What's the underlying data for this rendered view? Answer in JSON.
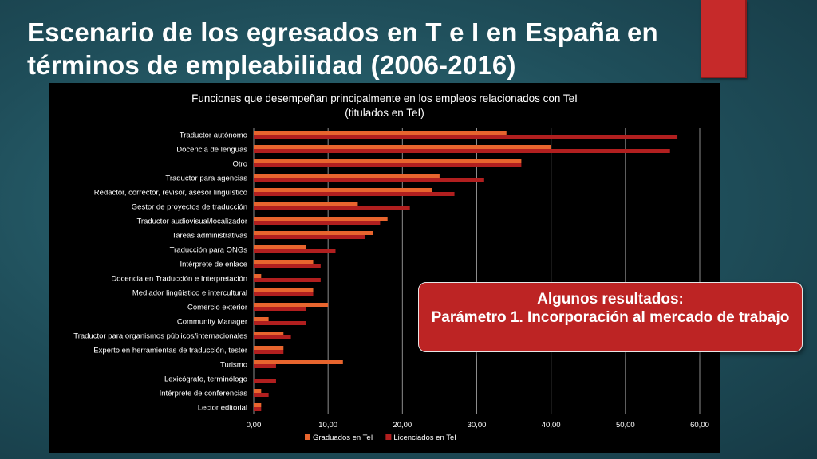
{
  "slide": {
    "title": "Escenario de los egresados en T e I  en España en términos de empleabilidad (2006-2016)"
  },
  "callout": {
    "heading": "Algunos resultados:",
    "body": "Parámetro 1. Incorporación al mercado de trabajo"
  },
  "colors": {
    "graduados": "#e8652e",
    "licenciados": "#b11f1f",
    "panel": "#000000",
    "callout": "#bd2424"
  },
  "chart_data": {
    "type": "bar",
    "orientation": "horizontal",
    "title": "Funciones que desempeñan principalmente en los empleos relacionados con TeI (titulados en TeI)",
    "categories": [
      "Traductor autónomo",
      "Docencia de lenguas",
      "Otro",
      "Traductor para agencias",
      "Redactor, corrector, revisor, asesor lingüístico",
      "Gestor de proyectos de traducción",
      "Traductor audiovisual/localizador",
      "Tareas administrativas",
      "Traducción para ONGs",
      "Intérprete de enlace",
      "Docencia en Traducción e Interpretación",
      "Mediador lingüístico e intercultural",
      "Comercio exterior",
      "Community Manager",
      "Traductor para organismos públicos/internacionales",
      "Experto en herramientas de traducción, tester",
      "Turismo",
      "Lexicógrafo, terminólogo",
      "Intérprete de conferencias",
      "Lector editorial"
    ],
    "series": [
      {
        "name": "Graduados en TeI",
        "values": [
          34,
          40,
          36,
          25,
          24,
          14,
          18,
          16,
          7,
          8,
          1,
          8,
          10,
          2,
          4,
          4,
          12,
          0,
          1,
          1
        ]
      },
      {
        "name": "Licenciados en TeI",
        "values": [
          57,
          56,
          36,
          31,
          27,
          21,
          17,
          15,
          11,
          9,
          9,
          8,
          7,
          7,
          5,
          4,
          3,
          3,
          2,
          1
        ]
      }
    ],
    "xlim": [
      0,
      60
    ],
    "xticks": [
      "0,00",
      "10,00",
      "20,00",
      "30,00",
      "40,00",
      "50,00",
      "60,00"
    ],
    "grid": "vertical",
    "legend": "bottom"
  }
}
